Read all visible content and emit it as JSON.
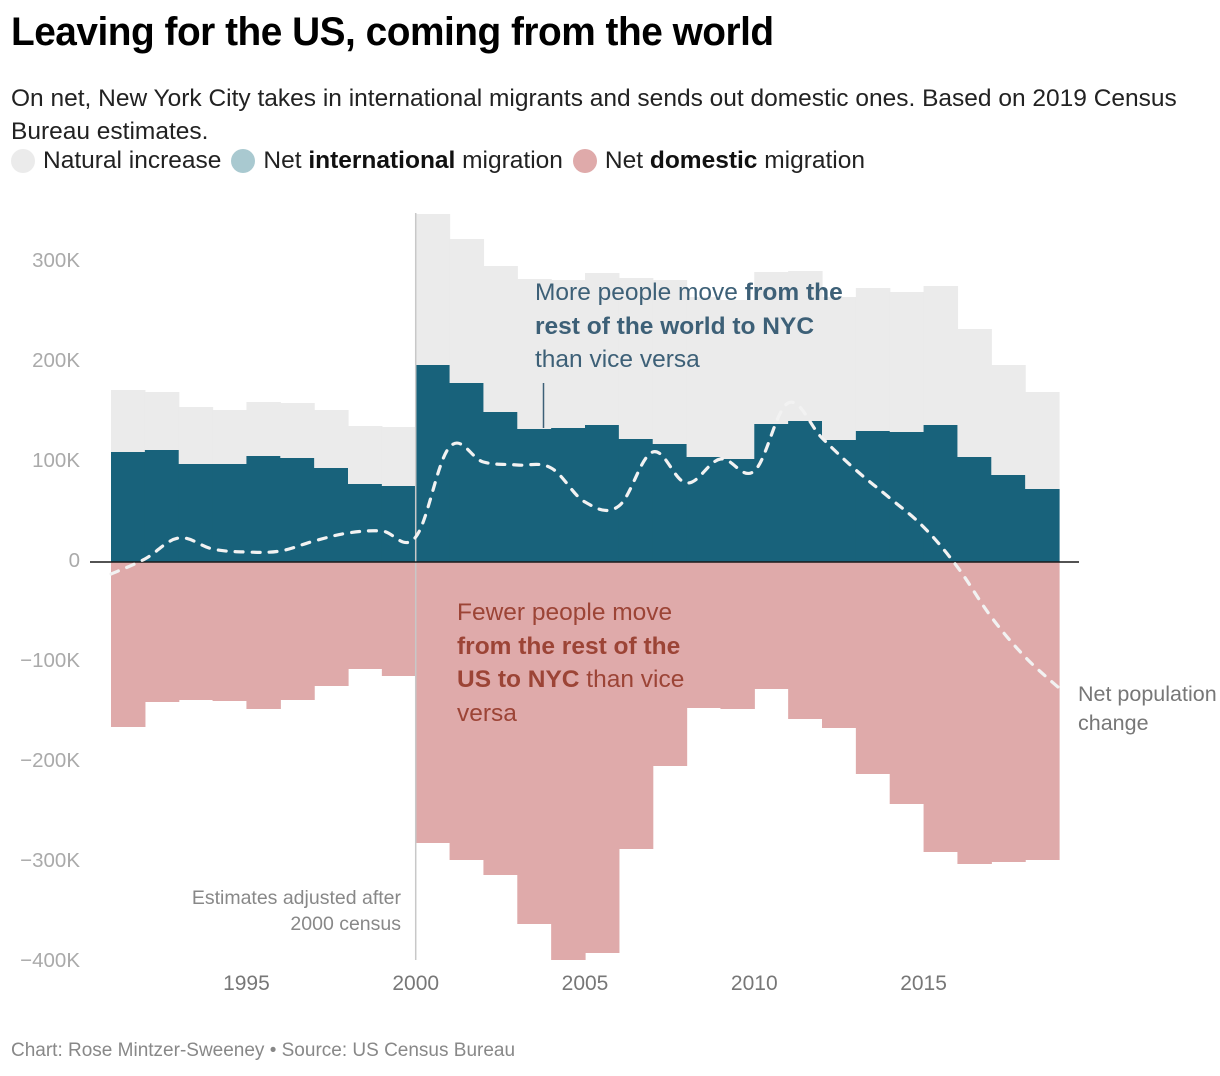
{
  "header": {
    "title": "Leaving for the US, coming from the world",
    "subtitle": "On net, New York City takes in international migrants and sends out domestic ones. Based on 2019 Census Bureau estimates."
  },
  "legend": [
    {
      "pre": "Natural increase",
      "bold": "",
      "post": "",
      "color": "#ebebeb"
    },
    {
      "pre": "Net ",
      "bold": "international",
      "post": " migration",
      "color": "#a9c9d0"
    },
    {
      "pre": "Net ",
      "bold": "domestic",
      "post": " migration",
      "color": "#dfaaaa"
    }
  ],
  "annotations": {
    "world": {
      "pre": "More people move ",
      "bold": "from the rest of the world to NYC",
      "post": " than vice versa"
    },
    "us": {
      "pre": "Fewer people move ",
      "bold": "from the rest of the US to NYC",
      "post": " than vice versa"
    },
    "adjust": "Estimates adjusted after 2000 census",
    "net_line_label": "Net population change"
  },
  "footer": "Chart: Rose Mintzer-Sweeney • Source: US Census Bureau",
  "colors": {
    "natural": "#ebebeb",
    "international": "#18627b",
    "domestic": "#dfaaaa",
    "net_line": "#f2f2f2",
    "zero_line": "#1a1a1a",
    "divider": "#c8c8c8",
    "annotation_world": "#3d6077",
    "annotation_us": "#9c4436"
  },
  "chart_data": {
    "type": "bar",
    "subtype": "stacked step bars with line overlay",
    "title": "Leaving for the US, coming from the world",
    "xlabel": "",
    "ylabel": "",
    "x_range": [
      1991,
      2019
    ],
    "ylim": [
      -400000,
      350000
    ],
    "y_ticks": [
      300000,
      200000,
      100000,
      0,
      -100000,
      -200000,
      -300000,
      -400000
    ],
    "y_tick_labels": [
      "300K",
      "200K",
      "100K",
      "0",
      "−100K",
      "−200K",
      "−300K",
      "−400K"
    ],
    "x_ticks": [
      1995,
      2000,
      2005,
      2010,
      2015
    ],
    "x_tick_labels": [
      "1995",
      "2000",
      "2005",
      "2010",
      "2015"
    ],
    "grid": false,
    "legend_position": "top",
    "divider_year": 2000,
    "period_starts": [
      1991,
      1992,
      1993,
      1994,
      1995,
      1996,
      1997,
      1998,
      1999,
      2000,
      2001,
      2002,
      2003,
      2004,
      2005,
      2006,
      2007,
      2008,
      2009,
      2010,
      2011,
      2012,
      2013,
      2014,
      2015,
      2016,
      2017,
      2018
    ],
    "series": [
      {
        "name": "Net international migration",
        "values": [
          110000,
          112000,
          98000,
          98000,
          106000,
          104000,
          94000,
          78000,
          76000,
          197000,
          179000,
          150000,
          133000,
          134000,
          137000,
          123000,
          118000,
          105000,
          103000,
          138000,
          141000,
          122000,
          131000,
          130000,
          137000,
          105000,
          87000,
          73000
        ]
      },
      {
        "name": "Natural increase",
        "values": [
          62000,
          58000,
          57000,
          54000,
          54000,
          55000,
          58000,
          58000,
          59000,
          151000,
          144000,
          146000,
          150000,
          148000,
          152000,
          161000,
          164000,
          160000,
          159000,
          152000,
          150000,
          143000,
          143000,
          140000,
          139000,
          128000,
          110000,
          97000
        ]
      },
      {
        "name": "Net domestic migration",
        "values": [
          -165000,
          -140000,
          -138000,
          -139000,
          -147000,
          -138000,
          -124000,
          -107000,
          -114000,
          -281000,
          -298000,
          -313000,
          -362000,
          -398000,
          -391000,
          -287000,
          -204000,
          -146000,
          -147000,
          -127000,
          -157000,
          -166000,
          -212000,
          -242000,
          -290000,
          -302000,
          -300000,
          -298000
        ]
      }
    ],
    "line": {
      "name": "Net population change",
      "x": [
        1991,
        1992,
        1993,
        1994,
        1995,
        1996,
        1997,
        1998,
        1999,
        2000,
        2001,
        2002,
        2003,
        2004,
        2005,
        2006,
        2007,
        2008,
        2009,
        2010,
        2011,
        2012,
        2013,
        2014,
        2015,
        2016,
        2017,
        2018,
        2019
      ],
      "values": [
        -12000,
        3000,
        24000,
        13000,
        10000,
        11000,
        21000,
        29000,
        31000,
        25000,
        115000,
        100000,
        97000,
        94000,
        60000,
        56000,
        110000,
        79000,
        103000,
        91000,
        159000,
        124000,
        92000,
        64000,
        35000,
        -5000,
        -55000,
        -95000,
        -126000
      ]
    }
  }
}
